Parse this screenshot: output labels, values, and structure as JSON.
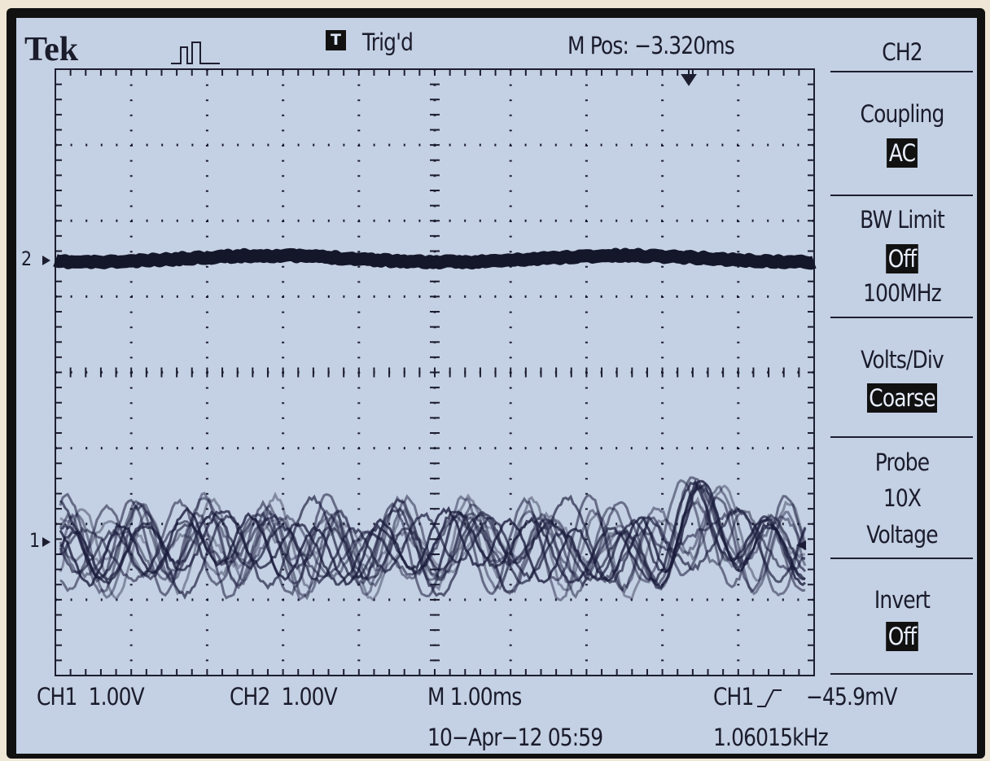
{
  "header": {
    "brand": "Tek",
    "trigger_icon": "T",
    "trigger_status": "Trig'd",
    "position": "M Pos: −3.320ms"
  },
  "menu": {
    "title": "CH2",
    "items": [
      {
        "label": "Coupling",
        "value": "AC"
      },
      {
        "label": "BW Limit",
        "value": "Off",
        "extra": "100MHz"
      },
      {
        "label": "Volts/Div",
        "value": "Coarse"
      },
      {
        "label": "Probe",
        "lines": [
          "10X",
          "Voltage"
        ]
      },
      {
        "label": "Invert",
        "value": "Off"
      }
    ]
  },
  "markers": {
    "ch2": "2",
    "ch1": "1"
  },
  "status": {
    "ch1_scale": "CH1  1.00V",
    "ch2_scale": "CH2  1.00V",
    "timebase": "M 1.00ms",
    "trigger_source": "CH1",
    "trigger_level": "−45.9mV",
    "date": "10−Apr−12 05:59",
    "frequency": "1.06015kHz"
  }
}
